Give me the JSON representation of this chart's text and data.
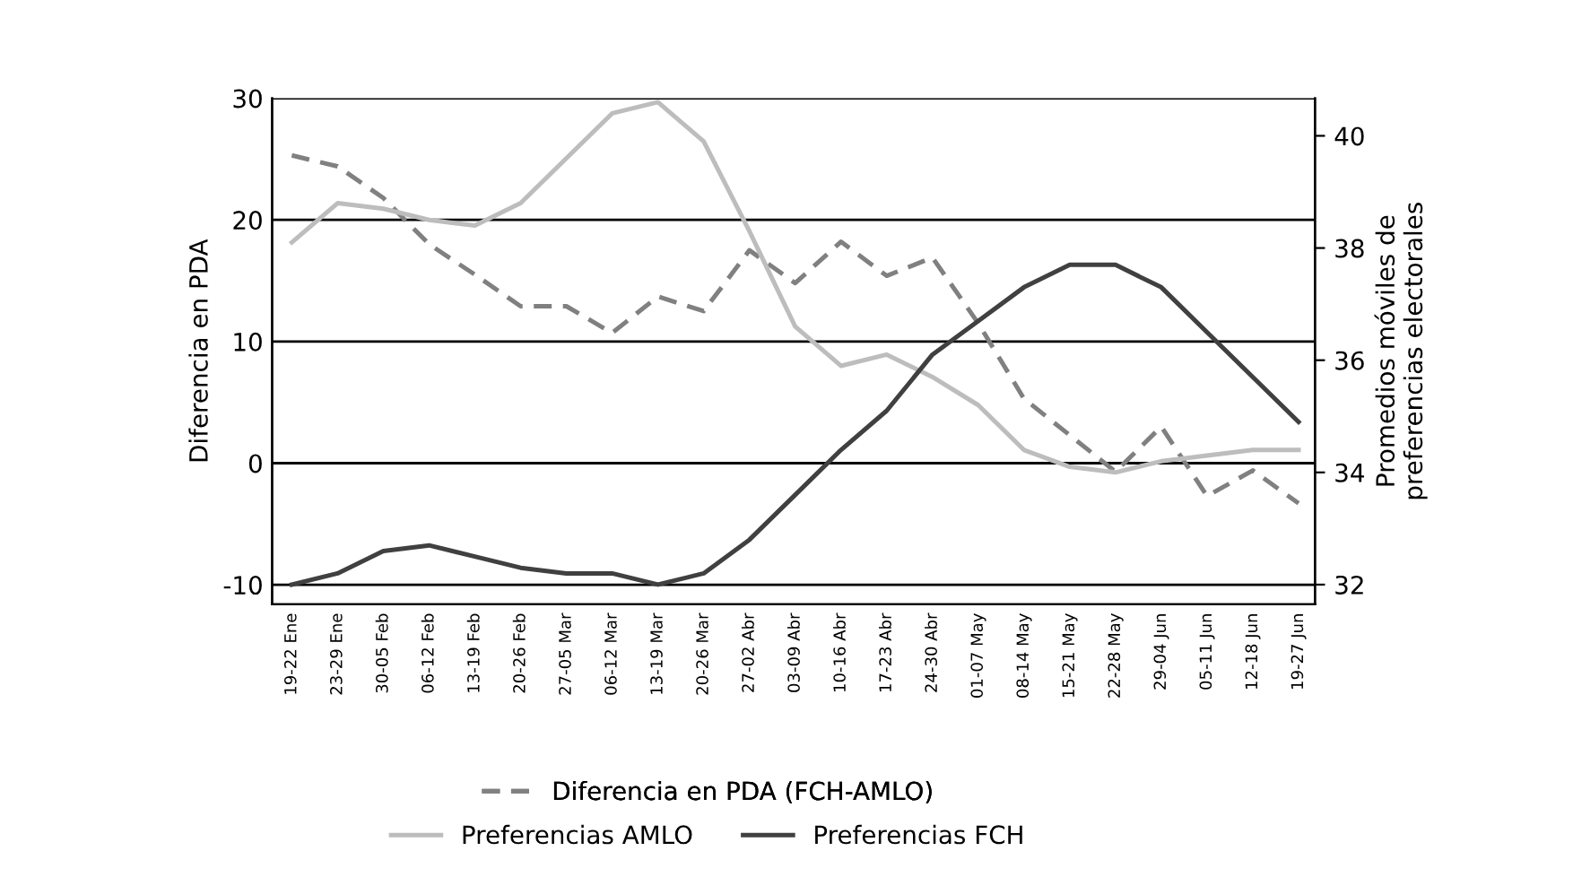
{
  "chart_data": {
    "type": "line",
    "categories": [
      "19-22 Ene",
      "23-29 Ene",
      "30-05 Feb",
      "06-12 Feb",
      "13-19 Feb",
      "20-26 Feb",
      "27-05 Mar",
      "06-12 Mar",
      "13-19 Mar",
      "20-26 Mar",
      "27-02 Abr",
      "03-09 Abr",
      "10-16 Abr",
      "17-23 Abr",
      "24-30 Abr",
      "01-07 May",
      "08-14 May",
      "15-21 May",
      "22-28 May",
      "29-04 Jun",
      "05-11 Jun",
      "12-18 Jun",
      "19-27 Jun"
    ],
    "series": [
      {
        "name": "Diferencia en PDA (FCH-AMLO)",
        "color": "#808080",
        "line_style": "dashed",
        "values": [
          25.3,
          24.4,
          21.8,
          18.0,
          15.5,
          12.9,
          12.9,
          10.7,
          13.7,
          12.5,
          17.5,
          14.8,
          18.2,
          15.4,
          16.9,
          11.5,
          5.3,
          2.3,
          -0.7,
          3.0,
          -2.7,
          -0.6,
          -3.3
        ]
      },
      {
        "name": "Preferencias AMLO",
        "color": "#bdbdbd",
        "line_style": "solid",
        "axis": "y2",
        "values": [
          38.1,
          38.8,
          38.7,
          38.5,
          38.4,
          38.8,
          39.6,
          40.4,
          40.6,
          39.9,
          38.3,
          36.6,
          35.9,
          36.1,
          35.7,
          35.2,
          34.4,
          34.1,
          34.0,
          34.2,
          34.3,
          34.4,
          34.4
        ]
      },
      {
        "name": "Preferencias FCH",
        "color": "#404040",
        "line_style": "solid",
        "axis": "y2",
        "values": [
          32.0,
          32.2,
          32.6,
          32.7,
          32.5,
          32.3,
          32.2,
          32.2,
          32.0,
          32.2,
          32.8,
          33.6,
          34.4,
          35.1,
          36.1,
          36.7,
          37.3,
          37.7,
          37.7,
          37.3,
          36.5,
          35.7,
          34.9
        ]
      }
    ],
    "ylabel": "Diferencia en PDA",
    "y2label": "Promedios móviles de\npreferencias electorales",
    "ylim": [
      -11.6,
      30
    ],
    "yticks": [
      -10,
      0,
      10,
      20,
      30
    ],
    "y2lim": [
      31.65,
      40.67
    ],
    "y2ticks": [
      32,
      34,
      36,
      38,
      40
    ],
    "grid": "y",
    "legend": "bottom",
    "marker": "none"
  }
}
